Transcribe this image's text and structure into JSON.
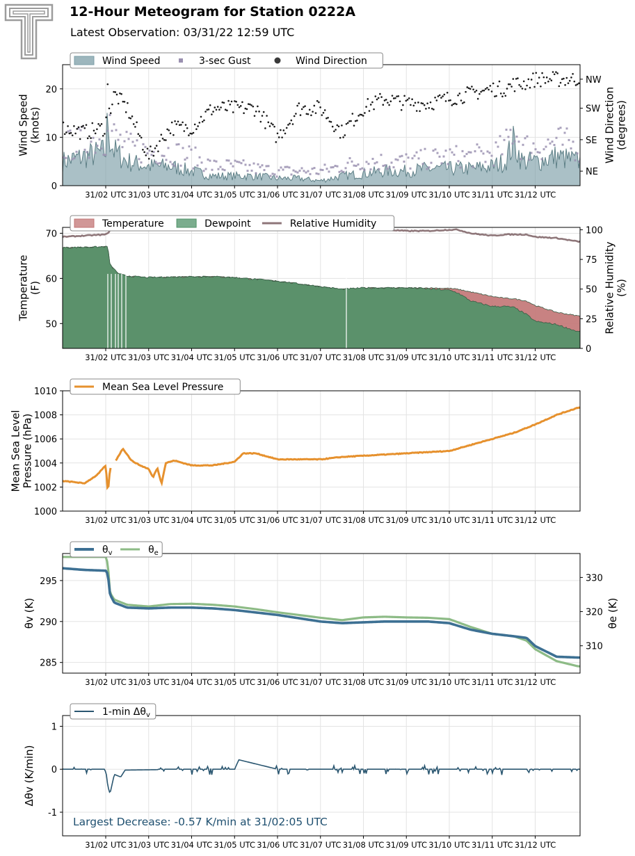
{
  "header": {
    "title": "12-Hour Meteogram for Station 0222A",
    "subtitle": "Latest Observation: 03/31/22 12:59 UTC",
    "logo": "texas-tech-double-t-logo"
  },
  "x_ticks": [
    "31/02 UTC",
    "31/03 UTC",
    "31/04 UTC",
    "31/05 UTC",
    "31/06 UTC",
    "31/07 UTC",
    "31/08 UTC",
    "31/09 UTC",
    "31/10 UTC",
    "31/11 UTC",
    "31/12 UTC"
  ],
  "colors": {
    "wind_speed": "#7c9ea7",
    "gust": "#9a90b0",
    "wind_direction": "#1a1a1a",
    "temperature": "#c27474",
    "dewpoint": "#4f9268",
    "relative_humidity": "#8e7679",
    "pressure": "#e6912e",
    "theta_v": "#3d7093",
    "theta_e": "#8dbb86",
    "delta_theta_v": "#2a5670",
    "annotation": "#1f5070"
  },
  "chart_data": [
    {
      "type": "area",
      "name": "wind",
      "legend": [
        "Wind Speed",
        "3-sec Gust",
        "Wind Direction"
      ],
      "legend_position": "top-left",
      "ylabel": "Wind Speed\n(knots)",
      "y2label": "Wind Direction\n(degrees)",
      "ylim": [
        0,
        25
      ],
      "yticks": [
        "0",
        "10",
        "20"
      ],
      "y2ticks": [
        "NE",
        "SE",
        "SW",
        "NW"
      ],
      "grid": true,
      "x_hours": [
        1.0,
        1.5,
        2.0,
        2.05,
        2.1,
        2.2,
        2.5,
        3.0,
        3.5,
        4.0,
        4.5,
        5.0,
        5.5,
        6.0,
        6.5,
        7.0,
        7.5,
        8.0,
        8.5,
        9.0,
        9.5,
        10.0,
        10.5,
        11.0,
        11.3,
        11.5,
        11.7,
        12.0,
        12.5,
        13.0
      ],
      "series": [
        {
          "name": "Wind Speed",
          "values": [
            5,
            6,
            7,
            14,
            10,
            7,
            5,
            4,
            4,
            3,
            2,
            2,
            2,
            1.5,
            1.5,
            1,
            2,
            2.5,
            3,
            3,
            3.5,
            3.5,
            3.5,
            4,
            5,
            9,
            5,
            5,
            6,
            5
          ]
        },
        {
          "name": "3-sec Gust",
          "values": [
            8,
            9,
            10,
            17,
            13,
            10,
            8,
            7,
            7,
            6,
            4,
            4,
            3.5,
            3,
            3,
            3,
            4,
            5,
            5,
            5,
            5.5,
            6,
            6,
            6.5,
            8,
            12,
            8,
            8,
            9,
            8
          ]
        },
        {
          "name": "Wind Direction",
          "values": [
            12,
            11,
            12,
            21,
            15,
            19,
            16,
            6,
            12,
            12,
            16,
            16,
            16,
            10,
            16,
            16,
            11,
            16,
            18,
            17,
            17,
            18,
            19,
            20,
            20,
            21,
            21,
            22,
            22,
            22
          ]
        }
      ]
    },
    {
      "type": "area",
      "name": "thermo",
      "legend": [
        "Temperature",
        "Dewpoint",
        "Relative Humidity"
      ],
      "legend_position": "top-left",
      "ylabel": "Temperature\n(F)",
      "y2label": "Relative Humidity\n(%)",
      "ylim": [
        44.5,
        71.3
      ],
      "yticks": [
        50,
        60,
        70
      ],
      "y2lim": [
        0,
        102
      ],
      "y2ticks": [
        0,
        25,
        50,
        75,
        100
      ],
      "grid": true,
      "x_hours": [
        1.0,
        1.5,
        2.0,
        2.05,
        2.1,
        2.3,
        2.5,
        3.0,
        3.5,
        4.0,
        4.5,
        5.0,
        5.5,
        6.0,
        6.5,
        7.0,
        7.5,
        8.0,
        8.5,
        9.0,
        9.5,
        10.0,
        10.2,
        10.5,
        11.0,
        11.3,
        11.5,
        11.8,
        12.0,
        12.5,
        13.0
      ],
      "series": [
        {
          "name": "Temperature",
          "values": [
            66.8,
            66.9,
            67.0,
            67.0,
            63.0,
            61.0,
            60.5,
            60.2,
            60.3,
            60.4,
            60.4,
            60.2,
            59.8,
            59.4,
            58.8,
            58.2,
            57.6,
            57.9,
            57.9,
            57.9,
            57.9,
            57.8,
            57.6,
            57.0,
            56.0,
            55.6,
            55.5,
            55.0,
            54.0,
            52.5,
            51.7
          ]
        },
        {
          "name": "Dewpoint",
          "values": [
            66.8,
            66.9,
            67.0,
            67.0,
            63.0,
            61.0,
            60.5,
            60.2,
            60.3,
            60.4,
            60.4,
            60.2,
            59.8,
            59.4,
            58.8,
            58.2,
            57.6,
            57.9,
            57.9,
            57.9,
            57.7,
            57.4,
            56.8,
            55.0,
            53.8,
            53.8,
            53.6,
            52.0,
            50.5,
            49.8,
            48.2
          ]
        },
        {
          "name": "Relative Humidity",
          "values": [
            94,
            95,
            96,
            97,
            100,
            100,
            100,
            100,
            100,
            100,
            100,
            100,
            100,
            100,
            100,
            100,
            100,
            100,
            100,
            99,
            99,
            100,
            100,
            97,
            95,
            96,
            96,
            96,
            94,
            93,
            90
          ]
        }
      ]
    },
    {
      "type": "line",
      "name": "pressure",
      "legend": [
        "Mean Sea Level Pressure"
      ],
      "legend_position": "top-left",
      "ylabel": "Mean Sea Level\nPressure (hPa)",
      "ylim": [
        1000,
        1010
      ],
      "yticks": [
        1000,
        1002,
        1004,
        1006,
        1008,
        1010
      ],
      "grid": true,
      "x_hours": [
        1.0,
        1.3,
        1.5,
        1.8,
        2.0,
        2.05,
        2.1,
        2.2,
        2.4,
        2.6,
        2.8,
        3.0,
        3.1,
        3.2,
        3.3,
        3.4,
        3.6,
        4.0,
        4.5,
        5.0,
        5.2,
        5.5,
        6.0,
        6.5,
        7.0,
        7.5,
        8.0,
        8.5,
        9.0,
        9.5,
        10.0,
        10.5,
        11.0,
        11.5,
        12.0,
        12.5,
        13.0
      ],
      "series": [
        {
          "name": "Mean Sea Level Pressure",
          "values": [
            1002.5,
            1002.4,
            1002.3,
            1003.0,
            1003.8,
            1001.5,
            1003.5,
            1004.0,
            1005.2,
            1004.2,
            1003.8,
            1003.5,
            1002.8,
            1003.6,
            1002.3,
            1004.0,
            1004.2,
            1003.8,
            1003.8,
            1004.1,
            1004.8,
            1004.8,
            1004.3,
            1004.3,
            1004.3,
            1004.5,
            1004.6,
            1004.7,
            1004.8,
            1004.9,
            1005.0,
            1005.5,
            1006.0,
            1006.5,
            1007.2,
            1008.0,
            1008.6
          ]
        }
      ]
    },
    {
      "type": "line",
      "name": "theta",
      "legend": [
        "θv",
        "θe"
      ],
      "legend_position": "top-left",
      "ylabel": "θv (K)",
      "y2label": "θe (K)",
      "ylim": [
        283.7,
        298.3
      ],
      "yticks": [
        285,
        290,
        295
      ],
      "y2lim": [
        302.0,
        337.0
      ],
      "y2ticks": [
        310,
        320,
        330
      ],
      "grid": true,
      "x_hours": [
        1.0,
        1.5,
        2.0,
        2.05,
        2.1,
        2.2,
        2.5,
        3.0,
        3.5,
        4.0,
        4.5,
        5.0,
        5.5,
        6.0,
        6.5,
        7.0,
        7.5,
        8.0,
        8.5,
        9.0,
        9.5,
        10.0,
        10.5,
        11.0,
        11.5,
        11.8,
        12.0,
        12.5,
        13.0
      ],
      "series": [
        {
          "name": "θv",
          "values": [
            296.5,
            296.3,
            296.2,
            295.8,
            293.3,
            292.3,
            291.7,
            291.6,
            291.7,
            291.7,
            291.6,
            291.4,
            291.1,
            290.8,
            290.4,
            290.0,
            289.8,
            289.9,
            290.0,
            290.0,
            290.0,
            289.8,
            289.0,
            288.5,
            288.2,
            288.0,
            287.0,
            285.7,
            285.6
          ]
        },
        {
          "name": "θe",
          "values": [
            336.0,
            336.0,
            336.0,
            334.0,
            325.5,
            323.5,
            322.0,
            321.5,
            322.2,
            322.3,
            322.0,
            321.5,
            320.7,
            319.8,
            319.0,
            318.2,
            317.5,
            318.3,
            318.5,
            318.3,
            318.2,
            317.8,
            315.5,
            313.5,
            312.8,
            311.5,
            309.0,
            305.5,
            304.0
          ]
        }
      ]
    },
    {
      "type": "line",
      "name": "dtheta",
      "legend": [
        "1-min Δθv"
      ],
      "legend_position": "top-left",
      "ylabel": "Δθv (K/min)",
      "ylim": [
        -1.55,
        1.25
      ],
      "yticks": [
        -1,
        0,
        1
      ],
      "grid": true,
      "annotation": "Largest Decrease: -0.57 K/min at 31/02:05 UTC",
      "x_hours": [
        1.0,
        2.0,
        2.05,
        2.1,
        2.2,
        2.35,
        2.45,
        4.0,
        5.0,
        5.1,
        6.0,
        7.0,
        8.0,
        9.0,
        10.0,
        11.0,
        12.0,
        13.0
      ],
      "series": [
        {
          "name": "1-min Δθv",
          "values": [
            0.0,
            0.0,
            -0.4,
            -0.57,
            -0.12,
            -0.18,
            -0.02,
            0.0,
            0.0,
            0.22,
            0.0,
            0.0,
            0.0,
            0.0,
            0.0,
            0.0,
            0.0,
            0.0
          ]
        }
      ]
    }
  ]
}
